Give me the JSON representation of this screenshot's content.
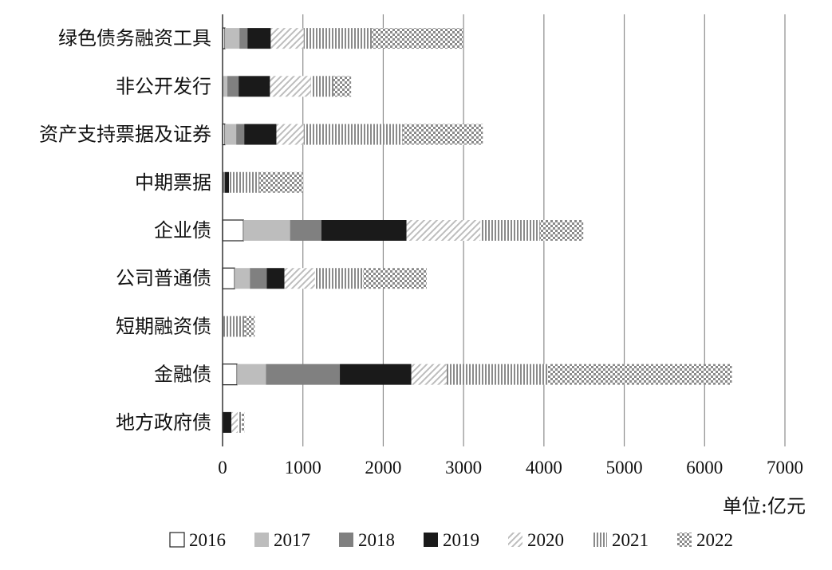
{
  "chart_data": {
    "type": "bar",
    "orientation": "horizontal",
    "stacked": true,
    "categories": [
      "绿色债务融资工具",
      "非公开发行",
      "资产支持票据及证券",
      "中期票据",
      "企业债",
      "公司普通债",
      "短期融资债",
      "金融债",
      "地方政府债"
    ],
    "series": [
      {
        "name": "2016",
        "values": [
          30,
          0,
          30,
          0,
          260,
          150,
          0,
          180,
          0
        ]
      },
      {
        "name": "2017",
        "values": [
          180,
          60,
          140,
          0,
          580,
          190,
          0,
          360,
          0
        ]
      },
      {
        "name": "2018",
        "values": [
          100,
          140,
          100,
          30,
          390,
          210,
          0,
          920,
          0
        ]
      },
      {
        "name": "2019",
        "values": [
          290,
          390,
          400,
          50,
          1060,
          220,
          0,
          890,
          110
        ]
      },
      {
        "name": "2020",
        "values": [
          410,
          510,
          340,
          0,
          920,
          380,
          0,
          440,
          80
        ]
      },
      {
        "name": "2021",
        "values": [
          850,
          280,
          1230,
          380,
          740,
          600,
          270,
          1260,
          50
        ]
      },
      {
        "name": "2022",
        "values": [
          1130,
          220,
          1000,
          540,
          540,
          790,
          130,
          2290,
          30
        ]
      }
    ],
    "series_styles": {
      "2016": "#ffffff",
      "2017": "#bdbdbd",
      "2018": "#808080",
      "2019": "#1a1a1a",
      "2020": "diagonal-hatch",
      "2021": "vertical-lines",
      "2022": "checker"
    },
    "xlim": [
      0,
      7000
    ],
    "xticks": [
      0,
      1000,
      2000,
      3000,
      4000,
      5000,
      6000,
      7000
    ],
    "grid": "vertical",
    "unit": "单位:亿元",
    "legend": [
      "2016",
      "2017",
      "2018",
      "2019",
      "2020",
      "2021",
      "2022"
    ],
    "legend_position": "bottom"
  }
}
